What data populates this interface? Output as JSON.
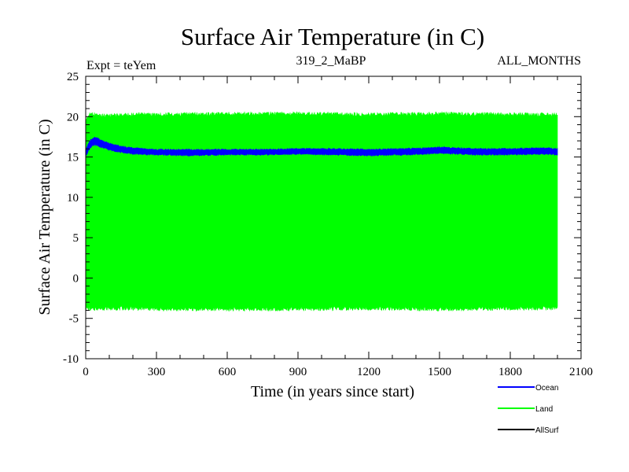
{
  "chart_data": {
    "type": "line",
    "title": "Surface Air Temperature (in C)",
    "header_left": "Expt = teYem",
    "header_center": "319_2_MaBP",
    "header_right": "ALL_MONTHS",
    "xlabel": "Time (in years since start)",
    "ylabel": "Surface Air Temperature (in C)",
    "xlim": [
      0,
      2100
    ],
    "ylim": [
      -10,
      25
    ],
    "xticks": [
      0,
      300,
      600,
      900,
      1200,
      1500,
      1800,
      2100
    ],
    "yticks": [
      -10,
      -5,
      0,
      5,
      10,
      15,
      20,
      25
    ],
    "x_minor_step": 100,
    "y_minor_step": 1,
    "series": [
      {
        "name": "Land",
        "color": "#00ff00",
        "style": "band",
        "x": [
          0,
          10,
          20,
          30,
          50,
          100,
          200,
          300,
          600,
          900,
          1200,
          1500,
          1800,
          2000
        ],
        "upper": [
          19.8,
          20.3,
          20.6,
          20.6,
          20.4,
          20.4,
          20.5,
          20.5,
          20.6,
          20.6,
          20.5,
          20.6,
          20.5,
          20.5
        ],
        "lower": [
          -3.9,
          -4.0,
          -4.1,
          -4.1,
          -4.0,
          -4.0,
          -4.0,
          -4.1,
          -4.1,
          -4.1,
          -4.0,
          -4.1,
          -4.0,
          -4.0
        ]
      },
      {
        "name": "Ocean",
        "color": "#0000ff",
        "style": "band",
        "x": [
          0,
          10,
          20,
          30,
          40,
          50,
          70,
          100,
          150,
          200,
          300,
          450,
          600,
          750,
          900,
          1050,
          1200,
          1350,
          1450,
          1500,
          1650,
          1800,
          1950,
          2000
        ],
        "upper": [
          15.9,
          16.7,
          17.2,
          17.4,
          17.5,
          17.4,
          17.1,
          16.8,
          16.4,
          16.2,
          16.0,
          16.0,
          16.0,
          16.0,
          16.1,
          16.1,
          16.0,
          16.1,
          16.2,
          16.3,
          16.1,
          16.1,
          16.2,
          16.1
        ],
        "lower": [
          15.0,
          15.6,
          16.1,
          16.3,
          16.4,
          16.3,
          16.1,
          15.8,
          15.5,
          15.3,
          15.2,
          15.1,
          15.2,
          15.2,
          15.3,
          15.2,
          15.1,
          15.2,
          15.3,
          15.4,
          15.2,
          15.2,
          15.3,
          15.2
        ]
      },
      {
        "name": "AllSurf",
        "color": "#000000",
        "style": "line",
        "x": [],
        "values": []
      }
    ],
    "legend": [
      {
        "label": "Ocean",
        "color": "#0000ff"
      },
      {
        "label": "Land",
        "color": "#00ff00"
      },
      {
        "label": "AllSurf",
        "color": "#000000"
      }
    ],
    "legend_position": "bottom-right, below plot"
  }
}
